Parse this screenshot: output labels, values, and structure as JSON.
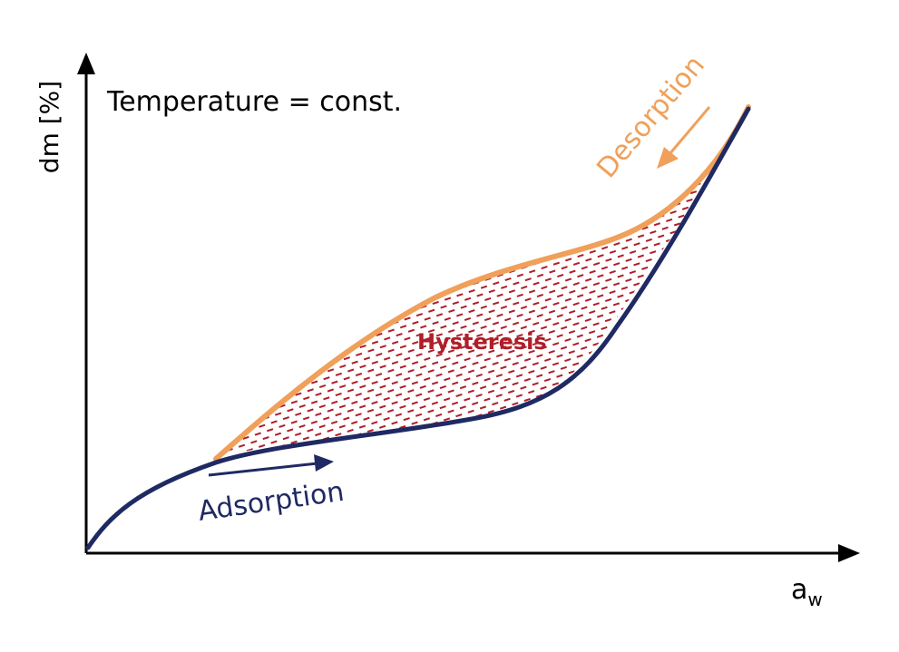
{
  "annotation": "Temperature = const.",
  "axes": {
    "y_label": "dm [%]",
    "x_label_main": "a",
    "x_label_sub": "w"
  },
  "curves": {
    "adsorption": {
      "label": "Adsorption",
      "color": "#1f2a63"
    },
    "desorption": {
      "label": "Desorption",
      "color": "#f0a05a"
    }
  },
  "region": {
    "label": "Hysteresis",
    "color": "#b01e28"
  }
}
